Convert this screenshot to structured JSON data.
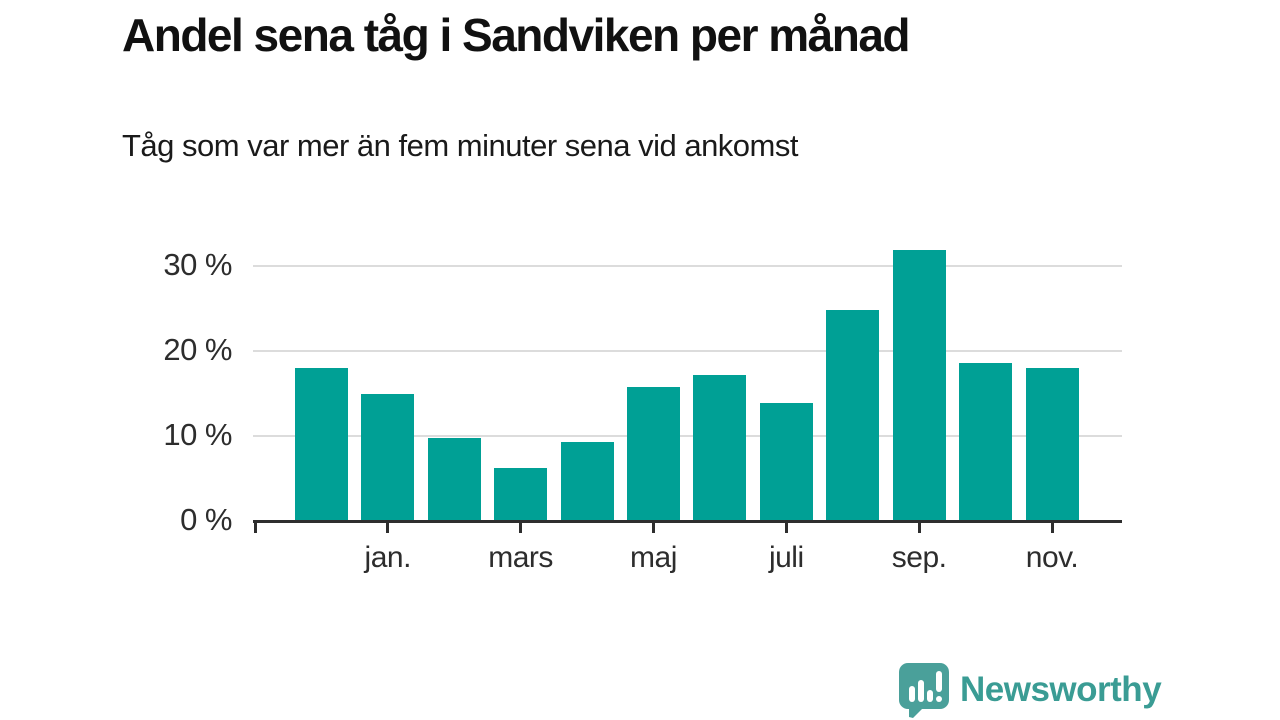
{
  "header": {
    "title": "Andel sena tåg i Sandviken per månad",
    "subtitle": "Tåg som var mer än fem minuter sena vid ankomst"
  },
  "chart_data": {
    "type": "bar",
    "title": "Andel sena tåg i Sandviken per månad",
    "subtitle": "Tåg som var mer än fem minuter sena vid ankomst",
    "unit": "%",
    "categories": [
      "",
      "jan.",
      "",
      "mars",
      "",
      "maj",
      "",
      "juli",
      "",
      "sep.",
      "",
      "nov."
    ],
    "values": [
      18.0,
      14.9,
      9.8,
      6.2,
      9.3,
      15.7,
      17.2,
      13.9,
      24.8,
      31.8,
      18.6,
      18.0
    ],
    "y_ticks": [
      0,
      10,
      20,
      30
    ],
    "y_tick_labels": [
      "0 %",
      "10 %",
      "20 %",
      "30 %"
    ],
    "ylim": [
      0,
      33
    ],
    "grid": "horizontal",
    "legend_position": "none",
    "bar_color": "#00a095",
    "gridline_color": "#dcdcdc",
    "axis_color": "#2e2e2e",
    "label_color": "#2d2d2d"
  },
  "footer": {
    "brand": "Newsworthy",
    "brand_color": "#3a9c94",
    "logo_color": "#4aa09a",
    "logo_glyph_color": "#ffffff"
  }
}
